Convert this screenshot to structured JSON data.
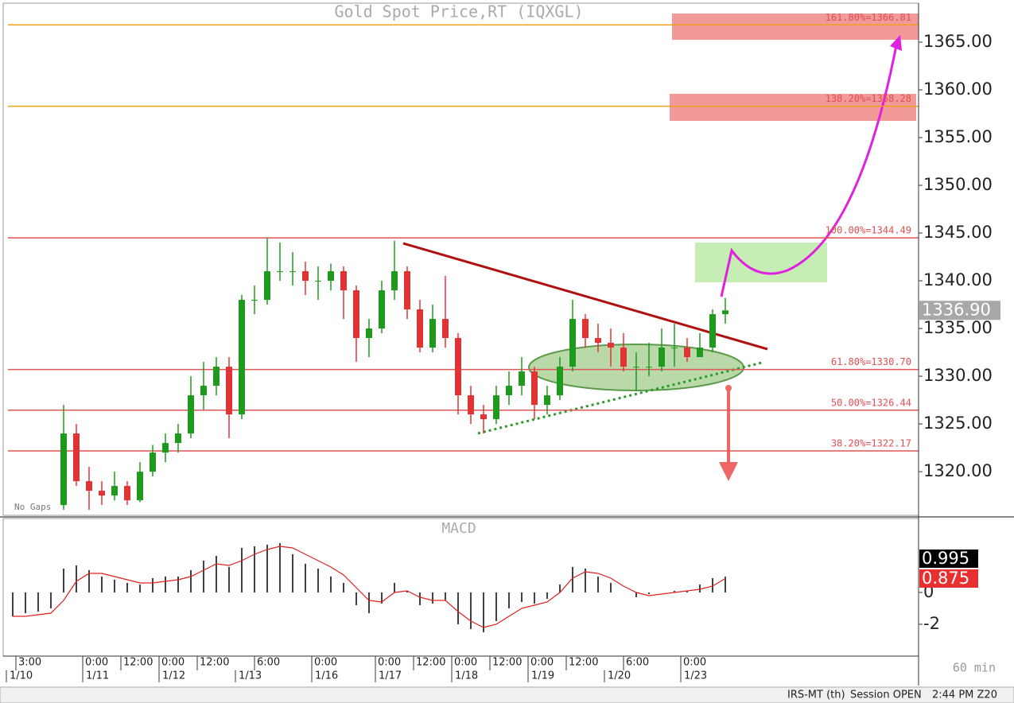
{
  "chart_data": [
    {
      "type": "candlestick",
      "title": "Gold Spot Price,RT (IQXGL)",
      "note": "No Gaps",
      "x": [
        18,
        22,
        26,
        30,
        34,
        38,
        42,
        46,
        50,
        54,
        58,
        62,
        66,
        70,
        74,
        78,
        82,
        86,
        90,
        94,
        98,
        102,
        106,
        110,
        114,
        118,
        122,
        126,
        130,
        134,
        138,
        142,
        146,
        150,
        154,
        158,
        162,
        166,
        170,
        174,
        178,
        182,
        186,
        190,
        194,
        198,
        202,
        206,
        210,
        214,
        218,
        222,
        226
      ],
      "open": [
        1316.5,
        1324,
        1319,
        1318,
        1317.5,
        1318.5,
        1317,
        1320,
        1322,
        1323,
        1324,
        1328,
        1329,
        1331,
        1326,
        1338,
        1338,
        1341,
        1341,
        1341,
        1340,
        1340,
        1341,
        1339,
        1334,
        1335,
        1339,
        1341,
        1337,
        1333,
        1336,
        1334,
        1328,
        1326,
        1325.5,
        1328,
        1329,
        1330.5,
        1327,
        1328,
        1331,
        1336,
        1334,
        1333.5,
        1333,
        1331,
        1331,
        1331,
        1333,
        1333,
        1332,
        1333,
        1336.5
      ],
      "high": [
        1327,
        1325,
        1320.5,
        1319,
        1320,
        1319,
        1321,
        1322.8,
        1324,
        1325,
        1330,
        1331.5,
        1332,
        1332,
        1338.5,
        1339.5,
        1344.5,
        1344,
        1343,
        1342,
        1341.5,
        1341.8,
        1341.5,
        1339.5,
        1336,
        1340,
        1344.2,
        1341.5,
        1338,
        1337.5,
        1340.5,
        1334.5,
        1329,
        1327,
        1329,
        1330.5,
        1332,
        1331,
        1329,
        1332,
        1338,
        1336.5,
        1335.5,
        1335,
        1334.5,
        1332.5,
        1333.5,
        1335,
        1335.5,
        1334,
        1334.5,
        1337,
        1338.2
      ],
      "low": [
        1316,
        1318.5,
        1316,
        1316.5,
        1317,
        1316.5,
        1316.8,
        1319.5,
        1321,
        1322,
        1323.5,
        1326.5,
        1328,
        1323.5,
        1325.5,
        1336.5,
        1337.5,
        1340,
        1339.5,
        1338.5,
        1338,
        1339,
        1336,
        1331.5,
        1332,
        1334.5,
        1338,
        1336,
        1332.5,
        1332.5,
        1333,
        1326,
        1325,
        1324,
        1325,
        1327,
        1328,
        1325.5,
        1326,
        1327.5,
        1330.5,
        1333,
        1332.5,
        1331,
        1330.5,
        1328.5,
        1330,
        1330.5,
        1331,
        1331.5,
        1332,
        1332.5,
        1335.5
      ],
      "close": [
        1324,
        1319,
        1318,
        1317.5,
        1318.5,
        1317,
        1320,
        1322,
        1323,
        1324,
        1328,
        1329,
        1331,
        1326,
        1338,
        1338,
        1341,
        1341,
        1341,
        1340,
        1340,
        1341,
        1339,
        1334,
        1335,
        1339,
        1341,
        1337,
        1333,
        1336,
        1334,
        1328,
        1326,
        1325.5,
        1328,
        1329,
        1330.5,
        1327,
        1328,
        1331,
        1336,
        1334,
        1333.5,
        1333,
        1331,
        1331,
        1331,
        1333,
        1333,
        1332,
        1333,
        1336.5,
        1336.9
      ],
      "up_color": "#1f9a1f",
      "down_color": "#e03434",
      "ylim": [
        1315.425,
        1369.0
      ],
      "yticks": [
        {
          "value": 1320,
          "label": "1320.00"
        },
        {
          "value": 1325,
          "label": "1325.00"
        },
        {
          "value": 1330,
          "label": "1330.00"
        },
        {
          "value": 1335,
          "label": "1335.00"
        },
        {
          "value": 1340,
          "label": "1340.00"
        },
        {
          "value": 1345,
          "label": "1345.00"
        },
        {
          "value": 1350,
          "label": "1350.00"
        },
        {
          "value": 1355,
          "label": "1355.00"
        },
        {
          "value": 1360,
          "label": "1360.00"
        },
        {
          "value": 1365,
          "label": "1365.00"
        }
      ],
      "levels": [
        {
          "value": 1366.81,
          "label": "161.80%=1366.81",
          "color": "#f0a020"
        },
        {
          "value": 1358.28,
          "label": "138.20%=1358.28",
          "color": "#f0a020"
        },
        {
          "value": 1344.49,
          "label": "100.00%=1344.49",
          "color": "#e05555"
        },
        {
          "value": 1330.7,
          "label": "61.80%=1330.70",
          "color": "#e05555"
        },
        {
          "value": 1326.44,
          "label": "50.00%=1326.44",
          "color": "#e05555"
        },
        {
          "value": 1322.17,
          "label": "38.20%=1322.17",
          "color": "#e05555"
        }
      ],
      "last_price": {
        "value": 1336.9,
        "label": "1336.90"
      }
    },
    {
      "type": "macd",
      "title": "MACD",
      "x": [
        2,
        6,
        10,
        14,
        18,
        22,
        26,
        30,
        34,
        38,
        42,
        46,
        50,
        54,
        58,
        62,
        66,
        70,
        74,
        78,
        82,
        86,
        90,
        94,
        98,
        102,
        106,
        110,
        114,
        118,
        122,
        126,
        130,
        134,
        138,
        142,
        146,
        150,
        154,
        158,
        162,
        166,
        170,
        174,
        178,
        182,
        186,
        190,
        194,
        198,
        202,
        206,
        210,
        214,
        218,
        222,
        226
      ],
      "histogram": {
        "color": "#000000",
        "values": [
          -1.5,
          -1.3,
          -1.2,
          -1.0,
          1.5,
          1.7,
          1.4,
          1.0,
          0.8,
          0.6,
          0.5,
          0.9,
          1.0,
          1.0,
          1.4,
          2.0,
          2.3,
          1.6,
          2.8,
          2.9,
          3.0,
          3.1,
          2.4,
          1.8,
          1.5,
          1.0,
          0.6,
          -0.8,
          -1.3,
          -0.7,
          0.6,
          0.1,
          -0.8,
          -0.7,
          -0.5,
          -2.0,
          -2.3,
          -2.5,
          -1.8,
          -1.0,
          -0.6,
          -0.7,
          -0.4,
          0.5,
          1.6,
          1.5,
          1.0,
          0.6,
          0.0,
          -0.3,
          -0.1,
          0.0,
          0.1,
          0.1,
          0.5,
          0.9,
          0.995
        ]
      },
      "signal": {
        "color": "#e02020",
        "values": [
          -1.5,
          -1.5,
          -1.4,
          -1.3,
          -0.5,
          0.7,
          1.2,
          1.2,
          1.0,
          0.8,
          0.6,
          0.6,
          0.7,
          0.8,
          1.0,
          1.4,
          1.8,
          1.7,
          2.0,
          2.4,
          2.7,
          2.9,
          2.8,
          2.4,
          2.0,
          1.6,
          1.1,
          0.3,
          -0.5,
          -0.6,
          0.0,
          0.1,
          -0.3,
          -0.5,
          -0.5,
          -1.2,
          -1.8,
          -2.2,
          -2.0,
          -1.5,
          -1.0,
          -0.8,
          -0.6,
          0.0,
          0.9,
          1.3,
          1.2,
          0.9,
          0.4,
          0.0,
          -0.2,
          -0.1,
          0.0,
          0.1,
          0.2,
          0.4,
          0.875
        ]
      },
      "ylim": [
        -4,
        4.65
      ],
      "yticks": [
        -2,
        0
      ]
    }
  ],
  "x_axis": {
    "xlim": [
      0,
      286.75
    ],
    "xticks": [
      {
        "value": 3,
        "label": "3:00"
      },
      {
        "value": 24,
        "label": "0:00"
      },
      {
        "value": 36,
        "label": "12:00"
      },
      {
        "value": 48,
        "label": "0:00"
      },
      {
        "value": 60,
        "label": "12:00"
      },
      {
        "value": 78,
        "label": "6:00"
      },
      {
        "value": 96,
        "label": "0:00"
      },
      {
        "value": 116,
        "label": "0:00"
      },
      {
        "value": 128,
        "label": "12:00"
      },
      {
        "value": 140,
        "label": "0:00"
      },
      {
        "value": 152,
        "label": "12:00"
      },
      {
        "value": 164,
        "label": "0:00"
      },
      {
        "value": 176,
        "label": "12:00"
      },
      {
        "value": 194,
        "label": "6:00"
      },
      {
        "value": 212,
        "label": "0:00"
      }
    ],
    "dates": [
      {
        "value": 0,
        "label": "1/10"
      },
      {
        "value": 24,
        "label": "1/11"
      },
      {
        "value": 48,
        "label": "1/12"
      },
      {
        "value": 72,
        "label": "1/13"
      },
      {
        "value": 96,
        "label": "1/16"
      },
      {
        "value": 116,
        "label": "1/17"
      },
      {
        "value": 140,
        "label": "1/18"
      },
      {
        "value": 164,
        "label": "1/19"
      },
      {
        "value": 188,
        "label": "1/20"
      },
      {
        "value": 212,
        "label": "1/23"
      }
    ],
    "interval": "60 min"
  },
  "status_bar": [
    "IRS-MT (th)",
    "Session OPEN",
    "2:44 PM Z20"
  ]
}
